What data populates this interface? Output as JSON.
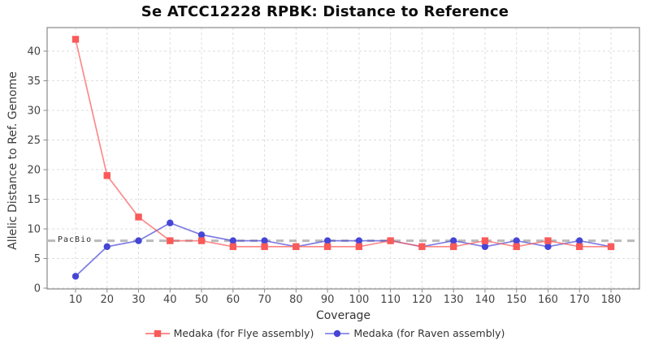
{
  "chart_data": {
    "type": "line",
    "title": "Se ATCC12228 RPBK: Distance to Reference",
    "xlabel": "Coverage",
    "ylabel": "Allelic Distance to Ref. Genome",
    "x": [
      10,
      20,
      30,
      40,
      50,
      60,
      70,
      80,
      90,
      100,
      110,
      120,
      130,
      140,
      150,
      160,
      170,
      180
    ],
    "yticks": [
      0,
      5,
      10,
      15,
      20,
      25,
      30,
      35,
      40
    ],
    "ylim": [
      0,
      44
    ],
    "grid": true,
    "grid_style": "dashed",
    "legend_position": "bottom-center",
    "series": [
      {
        "name": "Medaka (for Flye assembly)",
        "marker": "square",
        "color": "#fa5a5a",
        "values": [
          42,
          19,
          12,
          8,
          8,
          7,
          7,
          7,
          7,
          7,
          8,
          7,
          7,
          8,
          7,
          8,
          7,
          7
        ]
      },
      {
        "name": "Medaka (for Raven assembly)",
        "marker": "circle",
        "color": "#4545d6",
        "values": [
          2,
          7,
          8,
          11,
          9,
          8,
          8,
          7,
          8,
          8,
          8,
          7,
          8,
          7,
          8,
          7,
          8,
          7
        ]
      }
    ],
    "reference_line": {
      "label": "PacBio",
      "y": 8,
      "color": "#b9b9b9",
      "style": "dashed"
    }
  }
}
